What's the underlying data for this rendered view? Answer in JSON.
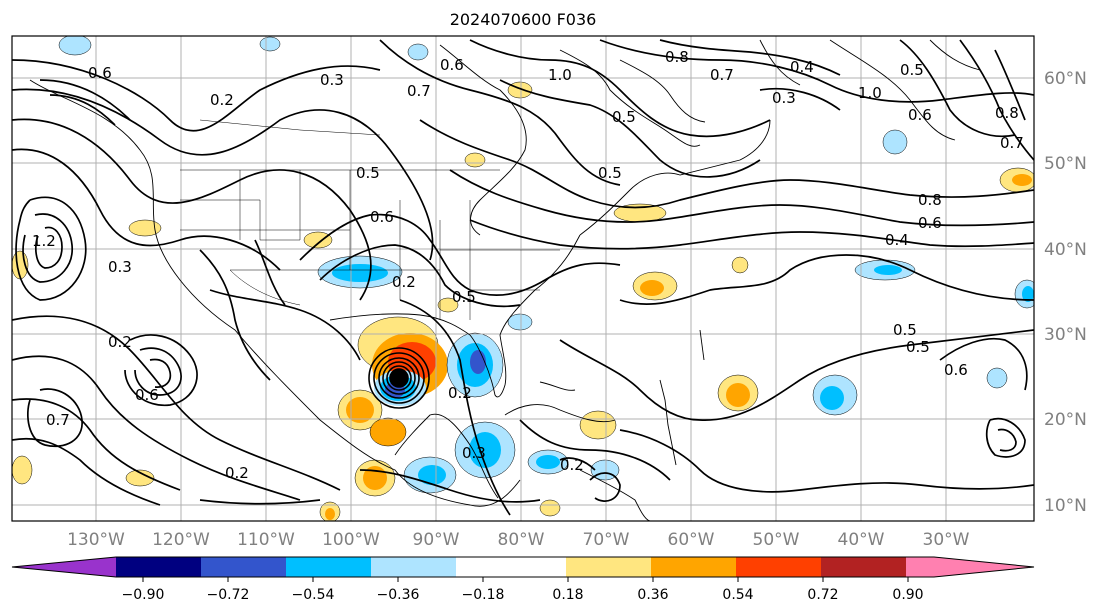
{
  "title": "2024070600 F036",
  "map": {
    "lon_labels": [
      "130°W",
      "120°W",
      "110°W",
      "100°W",
      "90°W",
      "80°W",
      "70°W",
      "60°W",
      "50°W",
      "40°W",
      "30°W"
    ],
    "lat_labels": [
      "60°N",
      "50°N",
      "40°N",
      "30°N",
      "20°N",
      "10°N"
    ],
    "grid": true,
    "contour_labels": [
      "0.6",
      "0.3",
      "0.2",
      "0.7",
      "0.6",
      "1.0",
      "0.8",
      "0.7",
      "0.4",
      "1.0",
      "0.3",
      "0.5",
      "0.5",
      "0.6",
      "1.2",
      "0.3",
      "0.2",
      "0.5",
      "0.8",
      "0.6",
      "0.4",
      "0.2",
      "0.5",
      "0.2",
      "0.3",
      "0.2",
      "0.6",
      "0.7",
      "0.2",
      "0.5",
      "0.5",
      "0.6",
      "0.7",
      "0.5",
      "0.8",
      "0.6"
    ],
    "colors": {
      "contour": "#000000",
      "grid": "#b0b0b0",
      "tick_label": "#808080"
    }
  },
  "colorbar": {
    "ticks": [
      "−0.90",
      "−0.72",
      "−0.54",
      "−0.36",
      "−0.18",
      "0.18",
      "0.36",
      "0.54",
      "0.72",
      "0.90"
    ],
    "colors": [
      "#9933cc",
      "#000080",
      "#3355cc",
      "#00bfff",
      "#aee4ff",
      "#ffffff",
      "#ffe680",
      "#ffa500",
      "#ff4000",
      "#b22222",
      "#ff80b0"
    ]
  }
}
